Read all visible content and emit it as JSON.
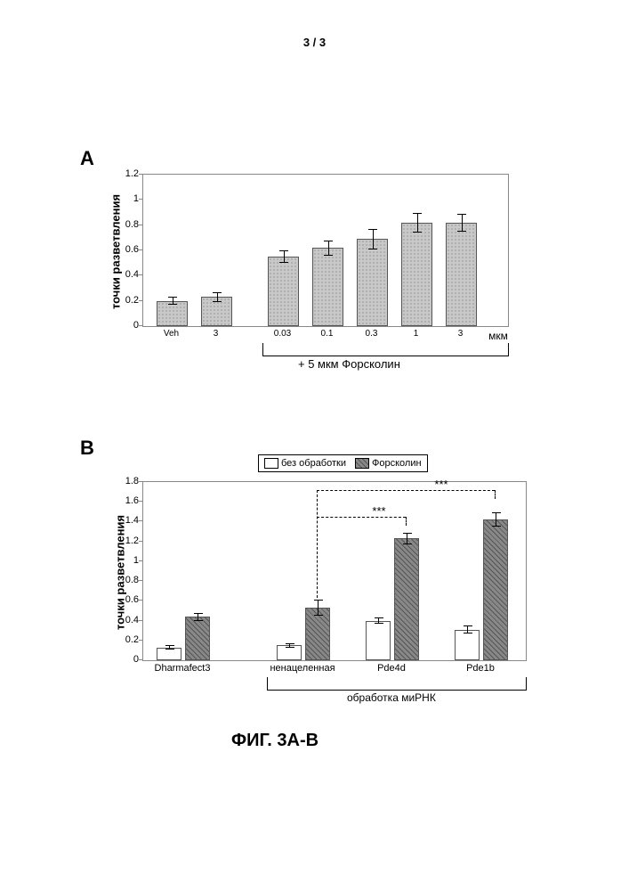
{
  "page_number": "3 / 3",
  "figure_caption": "ФИГ. 3A-B",
  "panelA": {
    "label": "A",
    "yaxis_label": "точки разветвления",
    "yticks": [
      "0",
      "0.2",
      "0.4",
      "0.6",
      "0.8",
      "1",
      "1.2"
    ],
    "ymax": 1.2,
    "xticks_left": [
      "Veh",
      "3"
    ],
    "xticks_right": [
      "0.03",
      "0.1",
      "0.3",
      "1",
      "3"
    ],
    "xunit": "мкм",
    "group_label": "+ 5 мкм Форсколин",
    "bar_color": "#c8c8c8",
    "border_color": "#888888",
    "bars": [
      {
        "x": 0,
        "v": 0.2,
        "err": 0.03,
        "group": "left"
      },
      {
        "x": 1,
        "v": 0.23,
        "err": 0.04,
        "group": "left"
      },
      {
        "x": 2,
        "v": 0.55,
        "err": 0.05,
        "group": "right"
      },
      {
        "x": 3,
        "v": 0.62,
        "err": 0.06,
        "group": "right"
      },
      {
        "x": 4,
        "v": 0.69,
        "err": 0.08,
        "group": "right"
      },
      {
        "x": 5,
        "v": 0.82,
        "err": 0.08,
        "group": "right"
      },
      {
        "x": 6,
        "v": 0.82,
        "err": 0.07,
        "group": "right"
      }
    ]
  },
  "panelB": {
    "label": "B",
    "yaxis_label": "точки разветвления",
    "yticks": [
      "0",
      "0.2",
      "0.4",
      "0.6",
      "0.8",
      "1",
      "1.2",
      "1.4",
      "1.6",
      "1.8"
    ],
    "ymax": 1.8,
    "legend_items": [
      "без обработки",
      "Форсколин"
    ],
    "legend_colors": [
      "#ffffff",
      "#888888"
    ],
    "xticks": [
      "Dharmafect3",
      "ненацеленная",
      "Pde4d",
      "Pde1b"
    ],
    "group_label": "обработка миРНК",
    "sig_marks": "***",
    "bars": [
      {
        "cat": 0,
        "series": 0,
        "v": 0.13,
        "err": 0.02
      },
      {
        "cat": 0,
        "series": 1,
        "v": 0.44,
        "err": 0.04
      },
      {
        "cat": 1,
        "series": 0,
        "v": 0.15,
        "err": 0.02
      },
      {
        "cat": 1,
        "series": 1,
        "v": 0.53,
        "err": 0.08
      },
      {
        "cat": 2,
        "series": 0,
        "v": 0.4,
        "err": 0.03
      },
      {
        "cat": 2,
        "series": 1,
        "v": 1.23,
        "err": 0.06
      },
      {
        "cat": 3,
        "series": 0,
        "v": 0.31,
        "err": 0.04
      },
      {
        "cat": 3,
        "series": 1,
        "v": 1.42,
        "err": 0.07
      }
    ]
  }
}
